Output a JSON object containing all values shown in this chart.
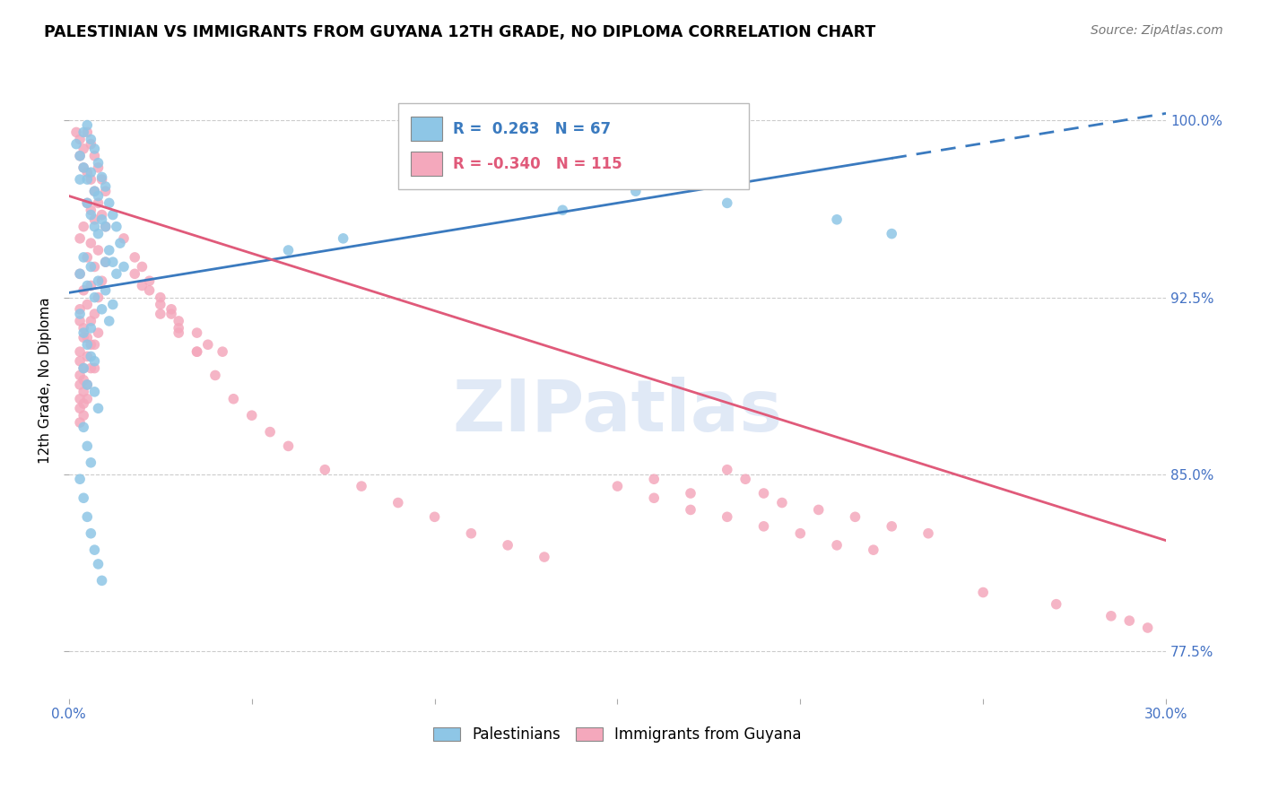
{
  "title": "PALESTINIAN VS IMMIGRANTS FROM GUYANA 12TH GRADE, NO DIPLOMA CORRELATION CHART",
  "source": "Source: ZipAtlas.com",
  "ylabel": "12th Grade, No Diploma",
  "xlim": [
    0.0,
    0.3
  ],
  "ylim": [
    0.755,
    1.025
  ],
  "yticks": [
    0.775,
    0.85,
    0.925,
    1.0
  ],
  "ytick_labels": [
    "77.5%",
    "85.0%",
    "92.5%",
    "100.0%"
  ],
  "xticks": [
    0.0,
    0.05,
    0.1,
    0.15,
    0.2,
    0.25,
    0.3
  ],
  "xtick_labels": [
    "0.0%",
    "",
    "",
    "",
    "",
    "",
    "30.0%"
  ],
  "r_palestinian": 0.263,
  "n_palestinian": 67,
  "r_guyana": -0.34,
  "n_guyana": 115,
  "blue_color": "#8ec6e6",
  "pink_color": "#f4a8bc",
  "line_blue": "#3a7abf",
  "line_pink": "#e05a7a",
  "watermark": "ZIPatlas",
  "legend_label_1": "Palestinians",
  "legend_label_2": "Immigrants from Guyana",
  "pal_line_x0": 0.0,
  "pal_line_y0": 0.927,
  "pal_line_x1": 0.3,
  "pal_line_y1": 1.003,
  "guy_line_x0": 0.0,
  "guy_line_y0": 0.968,
  "guy_line_x1": 0.3,
  "guy_line_y1": 0.822,
  "palestinian_x": [
    0.002,
    0.003,
    0.003,
    0.004,
    0.004,
    0.005,
    0.005,
    0.005,
    0.006,
    0.006,
    0.006,
    0.007,
    0.007,
    0.007,
    0.008,
    0.008,
    0.008,
    0.009,
    0.009,
    0.01,
    0.01,
    0.01,
    0.011,
    0.011,
    0.012,
    0.012,
    0.013,
    0.013,
    0.014,
    0.015,
    0.003,
    0.004,
    0.005,
    0.006,
    0.007,
    0.008,
    0.009,
    0.01,
    0.011,
    0.012,
    0.003,
    0.004,
    0.005,
    0.006,
    0.007,
    0.004,
    0.005,
    0.006,
    0.007,
    0.008,
    0.004,
    0.005,
    0.006,
    0.003,
    0.004,
    0.005,
    0.006,
    0.007,
    0.008,
    0.009,
    0.06,
    0.075,
    0.135,
    0.155,
    0.18,
    0.21,
    0.225
  ],
  "palestinian_y": [
    0.99,
    0.985,
    0.975,
    0.995,
    0.98,
    0.998,
    0.975,
    0.965,
    0.992,
    0.978,
    0.96,
    0.988,
    0.97,
    0.955,
    0.982,
    0.968,
    0.952,
    0.976,
    0.958,
    0.972,
    0.955,
    0.94,
    0.965,
    0.945,
    0.96,
    0.94,
    0.955,
    0.935,
    0.948,
    0.938,
    0.935,
    0.942,
    0.93,
    0.938,
    0.925,
    0.932,
    0.92,
    0.928,
    0.915,
    0.922,
    0.918,
    0.91,
    0.905,
    0.912,
    0.898,
    0.895,
    0.888,
    0.9,
    0.885,
    0.878,
    0.87,
    0.862,
    0.855,
    0.848,
    0.84,
    0.832,
    0.825,
    0.818,
    0.812,
    0.805,
    0.945,
    0.95,
    0.962,
    0.97,
    0.965,
    0.958,
    0.952
  ],
  "guyana_x": [
    0.002,
    0.003,
    0.003,
    0.004,
    0.004,
    0.005,
    0.005,
    0.005,
    0.006,
    0.006,
    0.006,
    0.007,
    0.007,
    0.007,
    0.008,
    0.008,
    0.009,
    0.009,
    0.01,
    0.01,
    0.003,
    0.004,
    0.005,
    0.006,
    0.007,
    0.008,
    0.009,
    0.01,
    0.003,
    0.004,
    0.005,
    0.006,
    0.007,
    0.008,
    0.003,
    0.004,
    0.005,
    0.006,
    0.007,
    0.008,
    0.003,
    0.004,
    0.005,
    0.006,
    0.007,
    0.003,
    0.004,
    0.005,
    0.006,
    0.003,
    0.004,
    0.005,
    0.003,
    0.004,
    0.003,
    0.004,
    0.003,
    0.004,
    0.003,
    0.003,
    0.015,
    0.018,
    0.02,
    0.022,
    0.025,
    0.028,
    0.03,
    0.035,
    0.04,
    0.045,
    0.05,
    0.055,
    0.06,
    0.07,
    0.08,
    0.09,
    0.1,
    0.11,
    0.12,
    0.13,
    0.018,
    0.022,
    0.028,
    0.035,
    0.042,
    0.02,
    0.025,
    0.03,
    0.038,
    0.025,
    0.03,
    0.035,
    0.15,
    0.16,
    0.17,
    0.18,
    0.19,
    0.2,
    0.21,
    0.22,
    0.16,
    0.17,
    0.25,
    0.27,
    0.285,
    0.29,
    0.295,
    0.18,
    0.185,
    0.19,
    0.195,
    0.205,
    0.215,
    0.225,
    0.235
  ],
  "guyana_y": [
    0.995,
    0.992,
    0.985,
    0.988,
    0.98,
    0.995,
    0.978,
    0.965,
    0.99,
    0.975,
    0.962,
    0.985,
    0.97,
    0.958,
    0.98,
    0.965,
    0.975,
    0.96,
    0.97,
    0.955,
    0.95,
    0.955,
    0.942,
    0.948,
    0.938,
    0.945,
    0.932,
    0.94,
    0.935,
    0.928,
    0.922,
    0.93,
    0.918,
    0.925,
    0.92,
    0.912,
    0.908,
    0.915,
    0.905,
    0.91,
    0.915,
    0.908,
    0.9,
    0.905,
    0.895,
    0.902,
    0.895,
    0.888,
    0.895,
    0.898,
    0.89,
    0.882,
    0.892,
    0.885,
    0.888,
    0.88,
    0.882,
    0.875,
    0.878,
    0.872,
    0.95,
    0.942,
    0.938,
    0.932,
    0.925,
    0.918,
    0.912,
    0.902,
    0.892,
    0.882,
    0.875,
    0.868,
    0.862,
    0.852,
    0.845,
    0.838,
    0.832,
    0.825,
    0.82,
    0.815,
    0.935,
    0.928,
    0.92,
    0.91,
    0.902,
    0.93,
    0.922,
    0.915,
    0.905,
    0.918,
    0.91,
    0.902,
    0.845,
    0.84,
    0.835,
    0.832,
    0.828,
    0.825,
    0.82,
    0.818,
    0.848,
    0.842,
    0.8,
    0.795,
    0.79,
    0.788,
    0.785,
    0.852,
    0.848,
    0.842,
    0.838,
    0.835,
    0.832,
    0.828,
    0.825
  ]
}
